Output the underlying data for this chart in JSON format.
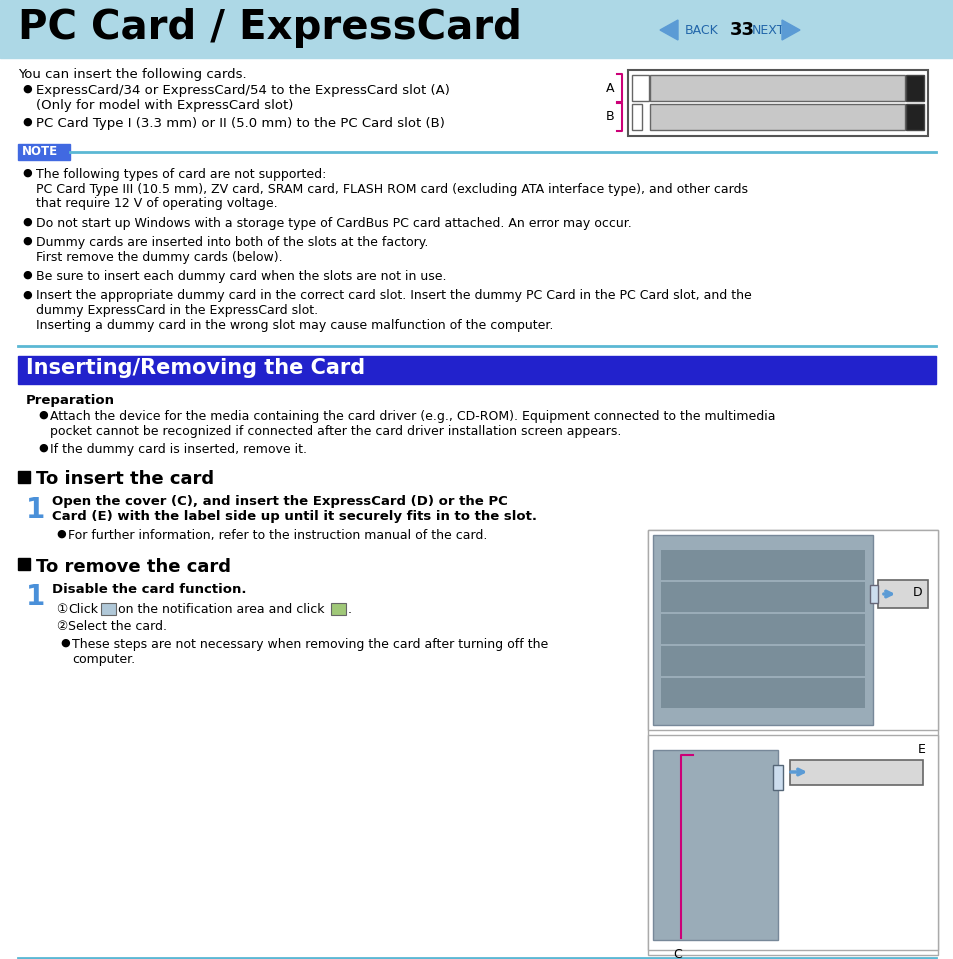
{
  "title": "PC Card / ExpressCard",
  "page_num": "33",
  "header_bg": "#add8e6",
  "white_bg": "#ffffff",
  "note_tab_bg": "#4169e1",
  "section_bg": "#2222cc",
  "section_text_color": "#ffffff",
  "blue_line_color": "#5bb8d4",
  "magenta_color": "#cc0077",
  "dark_gray": "#444444",
  "med_gray": "#999999",
  "light_gray": "#c8c8c8",
  "nav_arrow_color": "#5b9bd5",
  "nav_text_color": "#2266aa",
  "bullet_intro": "You can insert the following cards.",
  "bullet1a": "ExpressCard/34 or ExpressCard/54 to the ExpressCard slot (A)",
  "bullet1b": "(Only for model with ExpressCard slot)",
  "bullet2": "PC Card Type I (3.3 mm) or II (5.0 mm) to the PC Card slot (B)",
  "note_line1": "The following types of card are not supported:",
  "note_line2": "PC Card Type III (10.5 mm), ZV card, SRAM card, FLASH ROM card (excluding ATA interface type), and other cards",
  "note_line3": "that require 12 V of operating voltage.",
  "note_line4": "Do not start up Windows with a storage type of CardBus PC card attached. An error may occur.",
  "note_line5a": "Dummy cards are inserted into both of the slots at the factory.",
  "note_line5b": "First remove the dummy cards (below).",
  "note_line6": "Be sure to insert each dummy card when the slots are not in use.",
  "note_line7a": "Insert the appropriate dummy card in the correct card slot. Insert the dummy PC Card in the PC Card slot, and the",
  "note_line7b": "dummy ExpressCard in the ExpressCard slot.",
  "note_line7c": "Inserting a dummy card in the wrong slot may cause malfunction of the computer.",
  "section_title": "Inserting/Removing the Card",
  "prep_title": "Preparation",
  "prep1a": "Attach the device for the media containing the card driver (e.g., CD-ROM). Equipment connected to the multimedia",
  "prep1b": "pocket cannot be recognized if connected after the card driver installation screen appears.",
  "prep2": "If the dummy card is inserted, remove it.",
  "insert_title": "To insert the card",
  "step1_bold1": "Open the cover (C), and insert the ExpressCard (D) or the PC",
  "step1_bold2": "Card (E) with the label side up until it securely fits in to the slot.",
  "step1_bullet": "For further information, refer to the instruction manual of the card.",
  "remove_title": "To remove the card",
  "step2_bold": "Disable the card function.",
  "step2_sub1": "Click",
  "step2_mid": "on the notification area and click",
  "step2_sub2": "Select the card.",
  "step2_bullet1": "These steps are not necessary when removing the card after turning off the",
  "step2_bullet2": "computer."
}
